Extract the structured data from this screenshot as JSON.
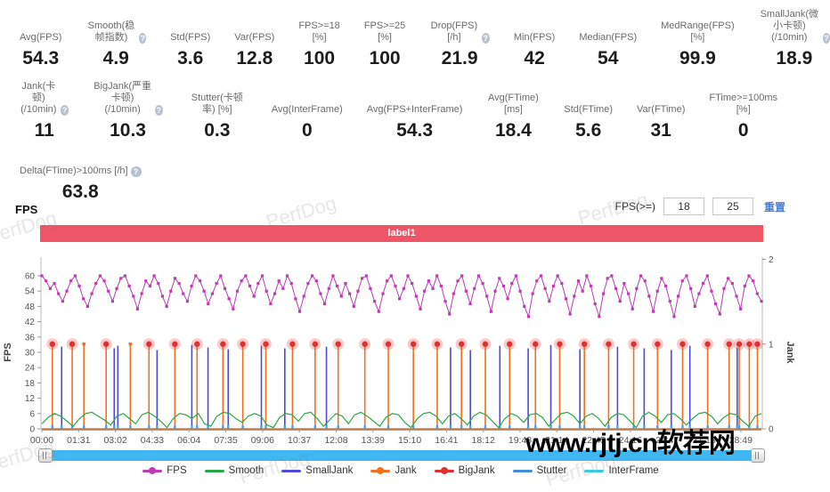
{
  "stats": {
    "rows": [
      [
        {
          "label": "Avg(FPS)",
          "value": "54.3",
          "help": false
        },
        {
          "label": "Smooth(稳帧指数)",
          "value": "4.9",
          "help": true
        },
        {
          "label": "Std(FPS)",
          "value": "3.6",
          "help": false
        },
        {
          "label": "Var(FPS)",
          "value": "12.8",
          "help": false
        },
        {
          "label": "FPS>=18 [%]",
          "value": "100",
          "help": false
        },
        {
          "label": "FPS>=25 [%]",
          "value": "100",
          "help": false
        },
        {
          "label": "Drop(FPS) [/h]",
          "value": "21.9",
          "help": true
        },
        {
          "label": "Min(FPS)",
          "value": "42",
          "help": false
        },
        {
          "label": "Median(FPS)",
          "value": "54",
          "help": false
        },
        {
          "label": "MedRange(FPS)[%]",
          "value": "99.9",
          "help": false
        },
        {
          "label": "SmallJank(微小卡顿)\n(/10min)",
          "value": "18.9",
          "help": true
        }
      ],
      [
        {
          "label": "Jank(卡顿)\n(/10min)",
          "value": "11",
          "help": true
        },
        {
          "label": "BigJank(严重卡顿)\n(/10min)",
          "value": "10.3",
          "help": true
        },
        {
          "label": "Stutter(卡顿率) [%]",
          "value": "0.3",
          "help": false
        },
        {
          "label": "Avg(InterFrame)",
          "value": "0",
          "help": false
        },
        {
          "label": "Avg(FPS+InterFrame)",
          "value": "54.3",
          "help": false
        },
        {
          "label": "Avg(FTime) [ms]",
          "value": "18.4",
          "help": false
        },
        {
          "label": "Std(FTime)",
          "value": "5.6",
          "help": false
        },
        {
          "label": "Var(FTime)",
          "value": "31",
          "help": false
        },
        {
          "label": "FTime>=100ms [%]",
          "value": "0",
          "help": false
        }
      ],
      [
        {
          "label": "Delta(FTime)>100ms [/h]",
          "value": "63.8",
          "help": true
        }
      ]
    ]
  },
  "section": {
    "title": "FPS"
  },
  "controls": {
    "label": "FPS(>=)",
    "input1": "18",
    "input2": "25",
    "reset": "重置"
  },
  "banner": {
    "text": "label1",
    "color": "#ee5566"
  },
  "watermarks": {
    "perfdog": "PerfDog",
    "site": "www.rjtj.cn软荐网"
  },
  "chart_data": {
    "type": "line",
    "title": "FPS",
    "y_left": {
      "label": "FPS",
      "min": 0,
      "max": 66,
      "ticks": [
        0,
        6,
        12,
        18,
        24,
        30,
        36,
        42,
        48,
        54,
        60
      ]
    },
    "y_right": {
      "label": "Jank",
      "min": 0,
      "max": 2,
      "ticks": [
        0,
        1,
        2
      ]
    },
    "x_axis": {
      "duration_s": 1780,
      "tick_interval_s": 91,
      "tick_labels": [
        "00:00",
        "01:31",
        "03:02",
        "04:33",
        "06:04",
        "07:35",
        "09:06",
        "10:37",
        "12:08",
        "13:39",
        "15:10",
        "16:41",
        "18:12",
        "19:43",
        "21:14",
        "22:45",
        "24:16",
        "25:47",
        "27:18",
        "28:49"
      ]
    },
    "grid": false,
    "legend_position": "bottom",
    "legend": [
      {
        "label": "FPS",
        "color": "#bf3bb4",
        "dot": true
      },
      {
        "label": "Smooth",
        "color": "#28a845",
        "dot": false
      },
      {
        "label": "SmallJank",
        "color": "#4e49d8",
        "dot": false
      },
      {
        "label": "Jank",
        "color": "#f2711c",
        "dot": true
      },
      {
        "label": "BigJank",
        "color": "#e03131",
        "dot": true
      },
      {
        "label": "Stutter",
        "color": "#3f8fdd",
        "dot": false
      },
      {
        "label": "InterFrame",
        "color": "#35d1e5",
        "dot": false
      }
    ],
    "series": [
      {
        "name": "FPS",
        "color": "#bf3bb4",
        "axis": "left",
        "style": "line+square-marker",
        "values": [
          60,
          58,
          55,
          57,
          53,
          50,
          54,
          58,
          60,
          56,
          51,
          48,
          53,
          57,
          60,
          58,
          54,
          50,
          55,
          59,
          60,
          56,
          52,
          47,
          53,
          58,
          56,
          60,
          57,
          52,
          48,
          54,
          59,
          57,
          53,
          50,
          56,
          60,
          58,
          54,
          49,
          53,
          57,
          60,
          55,
          51,
          47,
          54,
          58,
          60,
          56,
          52,
          57,
          60,
          54,
          49,
          53,
          58,
          55,
          60,
          57,
          51,
          46,
          52,
          57,
          60,
          58,
          53,
          49,
          55,
          60,
          56,
          52,
          57,
          53,
          48,
          54,
          59,
          60,
          55,
          50,
          46,
          53,
          58,
          60,
          56,
          51,
          55,
          60,
          57,
          52,
          47,
          54,
          58,
          55,
          60,
          56,
          50,
          45,
          53,
          58,
          60,
          54,
          49,
          55,
          60,
          57,
          52,
          46,
          54,
          59,
          56,
          51,
          57,
          60,
          54,
          48,
          44,
          53,
          58,
          60,
          55,
          50,
          56,
          60,
          57,
          51,
          45,
          52,
          58,
          54,
          60,
          56,
          49,
          44,
          53,
          59,
          60,
          55,
          50,
          57,
          53,
          47,
          55,
          60,
          58,
          52,
          46,
          54,
          59,
          56,
          50,
          44,
          52,
          58,
          60,
          55,
          48,
          53,
          57,
          60,
          54,
          49,
          45,
          55,
          59,
          57,
          52,
          47,
          56,
          60,
          58,
          53,
          50
        ]
      },
      {
        "name": "Smooth",
        "color": "#28a845",
        "axis": "left",
        "style": "line",
        "values": [
          2,
          4.5,
          6,
          5,
          3,
          1,
          4,
          6,
          6.5,
          5,
          3.5,
          1.5,
          5,
          6,
          4,
          2,
          5.5,
          6.5,
          5,
          3,
          0.5,
          4,
          6,
          5.5,
          4,
          6,
          2,
          1,
          5,
          6.5,
          6,
          4,
          2.5,
          5,
          6,
          5,
          1.5,
          0.5,
          4.5,
          6,
          5.5,
          3,
          6,
          6.5,
          4,
          1,
          3.5,
          6,
          5,
          2,
          5.5,
          6.5,
          5,
          3,
          1,
          4.5,
          6,
          5.5,
          2.5,
          0.5,
          4,
          6,
          6.5,
          5,
          2,
          5,
          6,
          4,
          1.5,
          5,
          6.5,
          5.5,
          3,
          0.5,
          4,
          6,
          5,
          2.5,
          5.5,
          6,
          4.5,
          1,
          3.5,
          6,
          6.5,
          5,
          2,
          5,
          6,
          4,
          1,
          4.5,
          6,
          5.5,
          3,
          0.5,
          5,
          6.5,
          5,
          2.5,
          5.5,
          6,
          4,
          1.5,
          4,
          6,
          6.5,
          5,
          2,
          4.5,
          6,
          5.5,
          3,
          1,
          5,
          6
        ]
      },
      {
        "name": "Jank",
        "color": "#f2711c",
        "axis": "right",
        "style": "event-spike",
        "spike_value": 1,
        "events": [
          {
            "t": 26,
            "big": true
          },
          {
            "t": 75,
            "big": true
          },
          {
            "t": 104,
            "big": false
          },
          {
            "t": 159,
            "big": true
          },
          {
            "t": 219,
            "big": false
          },
          {
            "t": 265,
            "big": true
          },
          {
            "t": 329,
            "big": true
          },
          {
            "t": 384,
            "big": true
          },
          {
            "t": 448,
            "big": true
          },
          {
            "t": 497,
            "big": true
          },
          {
            "t": 554,
            "big": true
          },
          {
            "t": 620,
            "big": true
          },
          {
            "t": 676,
            "big": true
          },
          {
            "t": 733,
            "big": true
          },
          {
            "t": 799,
            "big": true
          },
          {
            "t": 857,
            "big": true
          },
          {
            "t": 919,
            "big": true
          },
          {
            "t": 978,
            "big": true
          },
          {
            "t": 1038,
            "big": true
          },
          {
            "t": 1097,
            "big": true
          },
          {
            "t": 1157,
            "big": true
          },
          {
            "t": 1221,
            "big": true
          },
          {
            "t": 1281,
            "big": true
          },
          {
            "t": 1342,
            "big": true
          },
          {
            "t": 1402,
            "big": true
          },
          {
            "t": 1464,
            "big": true
          },
          {
            "t": 1523,
            "big": true
          },
          {
            "t": 1585,
            "big": true
          },
          {
            "t": 1647,
            "big": true
          },
          {
            "t": 1700,
            "big": true
          },
          {
            "t": 1725,
            "big": true
          },
          {
            "t": 1750,
            "big": true
          },
          {
            "t": 1770,
            "big": true
          }
        ]
      },
      {
        "name": "BigJank",
        "color": "#e03131",
        "axis": "right",
        "style": "marker-on-jank",
        "marker_value": 1
      },
      {
        "name": "SmallJank",
        "color": "#4e49d8",
        "axis": "right",
        "style": "event-spike",
        "times": [
          49,
          179,
          188,
          285,
          371,
          411,
          461,
          543,
          601,
          704,
          1011,
          1060,
          1133,
          1203,
          1259,
          1331,
          1424,
          1490,
          1557,
          1603,
          1720
        ],
        "heights": [
          0.97,
          0.95,
          0.98,
          0.93,
          0.99,
          0.96,
          0.94,
          0.98,
          0.95,
          0.97,
          0.96,
          0.93,
          0.98,
          0.95,
          0.99,
          0.94,
          0.97,
          0.95,
          0.93,
          0.98,
          0.96
        ]
      },
      {
        "name": "Stutter",
        "color": "#3f8fdd",
        "axis": "right",
        "style": "baseline",
        "value": 0
      },
      {
        "name": "InterFrame",
        "color": "#35d1e5",
        "axis": "left",
        "style": "baseline",
        "value": 0
      }
    ]
  }
}
